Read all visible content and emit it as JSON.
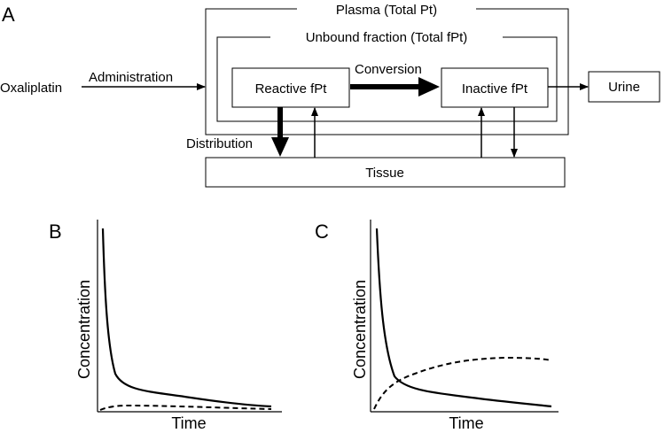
{
  "panels": {
    "a": "A",
    "b": "B",
    "c": "C"
  },
  "boxes": {
    "plasma": "Plasma (Total Pt)",
    "unbound": "Unbound fraction (Total fPt)",
    "reactive": "Reactive fPt",
    "inactive": "Inactive fPt",
    "urine": "Urine",
    "tissue": "Tissue"
  },
  "labels": {
    "drug": "Oxaliplatin",
    "administration": "Administration",
    "conversion": "Conversion",
    "distribution": "Distribution"
  },
  "chart_data": [
    {
      "type": "line",
      "panel": "B",
      "xlabel": "Time",
      "ylabel": "Concentration",
      "series": [
        {
          "style": "solid",
          "shape": "rapid initial decay, then slow decline toward baseline"
        },
        {
          "style": "dashed",
          "shape": "stays near zero throughout"
        }
      ]
    },
    {
      "type": "line",
      "panel": "C",
      "xlabel": "Time",
      "ylabel": "Concentration",
      "series": [
        {
          "style": "solid",
          "shape": "rapid initial decay, then slow decline toward baseline"
        },
        {
          "style": "dashed",
          "shape": "rises from zero, plateaus, slight decline at end"
        }
      ]
    }
  ]
}
